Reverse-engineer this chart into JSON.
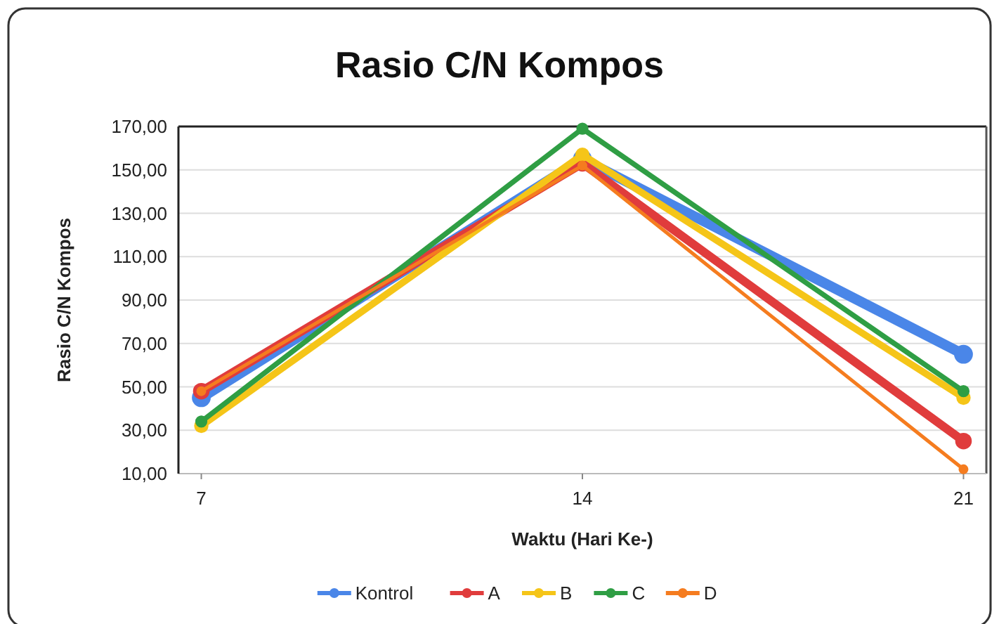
{
  "chart_data": {
    "type": "line",
    "title": "Rasio C/N Kompos",
    "xlabel": "Waktu (Hari Ke-)",
    "ylabel": "Rasio C/N Kompos",
    "categories": [
      "7",
      "14",
      "21"
    ],
    "series": [
      {
        "name": "Kontrol",
        "color": "#4a86e8",
        "values": [
          45,
          155,
          65
        ]
      },
      {
        "name": "A",
        "color": "#e03c3c",
        "values": [
          48,
          153,
          25
        ]
      },
      {
        "name": "B",
        "color": "#f5c518",
        "values": [
          32,
          157,
          45
        ]
      },
      {
        "name": "C",
        "color": "#2f9e44",
        "values": [
          34,
          169,
          48
        ]
      },
      {
        "name": "D",
        "color": "#f57c1f",
        "values": [
          48,
          152,
          12
        ]
      }
    ],
    "ylim": [
      10,
      170
    ],
    "yticks": [
      {
        "value": 10,
        "label": "10,00"
      },
      {
        "value": 30,
        "label": "30,00"
      },
      {
        "value": 50,
        "label": "50,00"
      },
      {
        "value": 70,
        "label": "70,00"
      },
      {
        "value": 90,
        "label": "90,00"
      },
      {
        "value": 110,
        "label": "110,00"
      },
      {
        "value": 130,
        "label": "130,00"
      },
      {
        "value": 150,
        "label": "150,00"
      },
      {
        "value": 170,
        "label": "170,00"
      }
    ],
    "grid": "y",
    "legend": "bottom",
    "marker": "circle",
    "line_style": "solid"
  }
}
